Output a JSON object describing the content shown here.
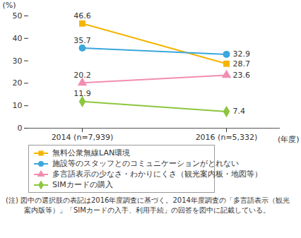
{
  "chart_data": {
    "type": "line",
    "categories": [
      "2014 (n=7,939)",
      "2016 (n=5,332)"
    ],
    "x_label": "(年度)",
    "y_label": "(%)",
    "ylim": [
      0,
      50
    ],
    "yticks": [
      0,
      10,
      20,
      30,
      40,
      50
    ],
    "data_labels": true,
    "series": [
      {
        "name": "無料公衆無線LAN環境",
        "color": "#f5b400",
        "marker": "square",
        "values": [
          46.6,
          28.7
        ]
      },
      {
        "name": "施設等のスタッフとのコミュニケーションがとれない",
        "color": "#3ba7dd",
        "marker": "circle",
        "values": [
          35.7,
          32.9
        ]
      },
      {
        "name": "多言語表示の少なさ・わかりにくさ（観光案内板・地図等）",
        "color": "#f28db2",
        "marker": "triangle",
        "values": [
          20.2,
          23.6
        ]
      },
      {
        "name": "SIMカードの購入",
        "color": "#8dc63f",
        "marker": "diamond",
        "values": [
          11.9,
          7.4
        ]
      }
    ],
    "note": "(注) 図中の選択肢の表記は2016年度調査に基づく。2014年度調査の「多言語表示（観光案内版等）」「SIMカードの入手、利用手続」の回答を図中に記載している。"
  }
}
